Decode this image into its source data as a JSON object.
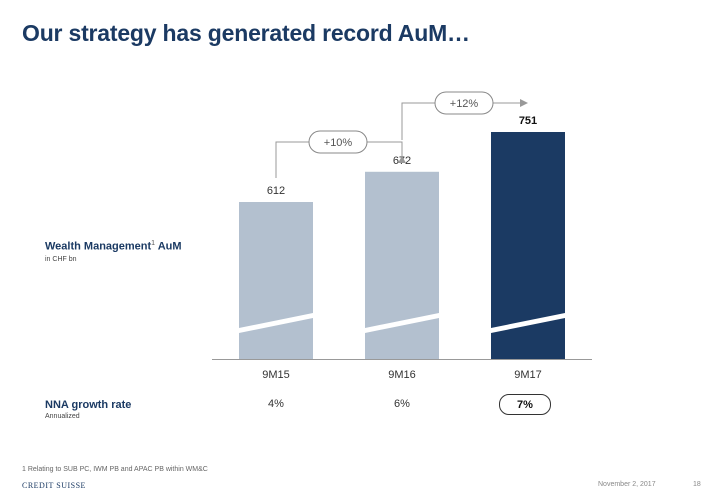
{
  "title": "Our strategy has generated record AuM…",
  "chart_data": {
    "type": "bar",
    "series_label": "Wealth Management",
    "series_label_sup": "1",
    "series_label_suffix": " AuM",
    "unit_label": "in CHF bn",
    "categories": [
      "9M15",
      "9M16",
      "9M17"
    ],
    "values": [
      612,
      672,
      751
    ],
    "value_labels": [
      "612",
      "672",
      "751"
    ],
    "growth_annotations": [
      "+10%",
      "+12%"
    ],
    "highlight_index": 2,
    "colors": {
      "bar": "#b3c0cf",
      "highlight": "#1b3a63",
      "break": "#ffffff"
    }
  },
  "nna": {
    "label": "NNA growth rate",
    "sub": "Annualized",
    "values": [
      "4%",
      "6%",
      "7%"
    ]
  },
  "footnote": "1 Relating to SUB PC, IWM PB and APAC PB within WM&C",
  "logo": "CREDIT SUISSE",
  "date": "November 2, 2017",
  "page": "18"
}
